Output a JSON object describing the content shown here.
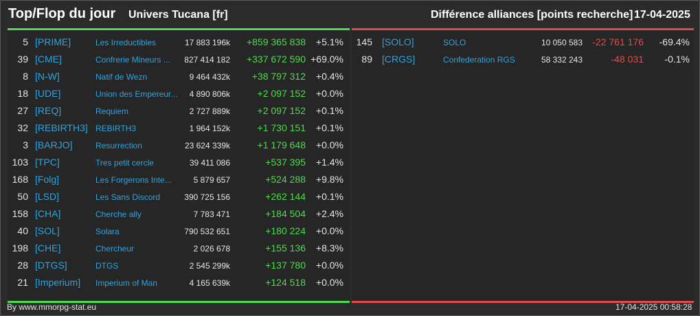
{
  "header": {
    "title": "Top/Flop du jour",
    "universe": "Univers Tucana [fr]",
    "subtitle": "Différence alliances [points recherche]",
    "date": "17-04-2025"
  },
  "colors": {
    "top": "#4ddc4d",
    "flop": "#e34b4b",
    "tag": "#33a3dc",
    "background": "#262626"
  },
  "top": [
    {
      "rank": "5",
      "tag": "[PRIME]",
      "name": "Les Irreductibles",
      "points": "17 883 196k",
      "delta": "+859 365 838",
      "pct": "+5.1%"
    },
    {
      "rank": "39",
      "tag": "[CME]",
      "name": "Confrerie Mineurs ...",
      "points": "827 414 182",
      "delta": "+337 672 590",
      "pct": "+69.0%"
    },
    {
      "rank": "8",
      "tag": "[N-W]",
      "name": "Natif de Wezn",
      "points": "9 464 432k",
      "delta": "+38 797 312",
      "pct": "+0.4%"
    },
    {
      "rank": "18",
      "tag": "[UDE]",
      "name": "Union des Empereur...",
      "points": "4 890 806k",
      "delta": "+2 097 152",
      "pct": "+0.0%"
    },
    {
      "rank": "27",
      "tag": "[REQ]",
      "name": "Requiem",
      "points": "2 727 889k",
      "delta": "+2 097 152",
      "pct": "+0.1%"
    },
    {
      "rank": "32",
      "tag": "[REBIRTH3]",
      "name": "REBIRTH3",
      "points": "1 964 152k",
      "delta": "+1 730 151",
      "pct": "+0.1%"
    },
    {
      "rank": "3",
      "tag": "[BARJO]",
      "name": "Resurrection",
      "points": "23 624 339k",
      "delta": "+1 179 648",
      "pct": "+0.0%"
    },
    {
      "rank": "103",
      "tag": "[TPC]",
      "name": "Tres petit cercle",
      "points": "39 411 086",
      "delta": "+537 395",
      "pct": "+1.4%"
    },
    {
      "rank": "168",
      "tag": "[Folg]",
      "name": "Les Forgerons Inte...",
      "points": "5 879 657",
      "delta": "+524 288",
      "pct": "+9.8%"
    },
    {
      "rank": "50",
      "tag": "[LSD]",
      "name": "Les Sans Discord",
      "points": "390 725 156",
      "delta": "+262 144",
      "pct": "+0.1%"
    },
    {
      "rank": "158",
      "tag": "[CHA]",
      "name": "Cherche ally",
      "points": "7 783 471",
      "delta": "+184 504",
      "pct": "+2.4%"
    },
    {
      "rank": "40",
      "tag": "[SOL]",
      "name": "Solara",
      "points": "790 532 651",
      "delta": "+180 224",
      "pct": "+0.0%"
    },
    {
      "rank": "198",
      "tag": "[CHE]",
      "name": "Chercheur",
      "points": "2 026 678",
      "delta": "+155 136",
      "pct": "+8.3%"
    },
    {
      "rank": "28",
      "tag": "[DTGS]",
      "name": "DTGS",
      "points": "2 545 299k",
      "delta": "+137 780",
      "pct": "+0.0%"
    },
    {
      "rank": "21",
      "tag": "[Imperium]",
      "name": "Imperium of Man",
      "points": "4 165 639k",
      "delta": "+124 518",
      "pct": "+0.0%"
    }
  ],
  "flop": [
    {
      "rank": "145",
      "tag": "[SOLO]",
      "name": "SOLO",
      "points": "10 050 583",
      "delta": "-22 761 176",
      "pct": "-69.4%"
    },
    {
      "rank": "89",
      "tag": "[CRGS]",
      "name": "Confederation RGS",
      "points": "58 332 243",
      "delta": "-48 031",
      "pct": "-0.1%"
    }
  ],
  "footer": {
    "source": "By www.mmorpg-stat.eu",
    "timestamp": "17-04-2025 00:58:28"
  }
}
